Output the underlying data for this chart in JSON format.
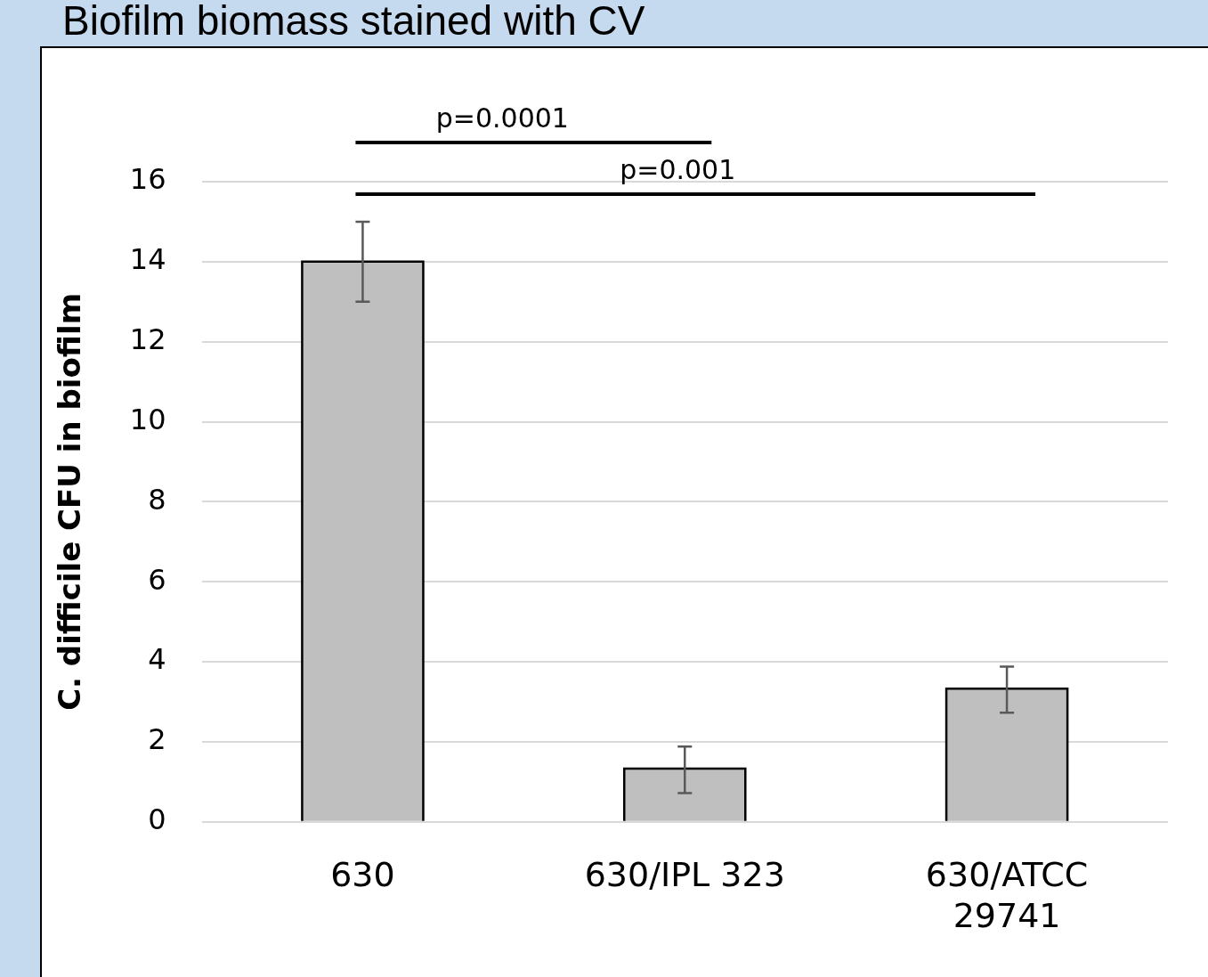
{
  "chart_data": {
    "type": "bar",
    "title": "Biofilm biomass stained with CV",
    "ylabel": "C. difficile CFU in biofilm",
    "categories": [
      "630",
      "630/IPL 323",
      "630/ATCC 29741"
    ],
    "values": [
      14,
      1.33,
      3.33
    ],
    "errors": [
      [
        13,
        15
      ],
      [
        0.72,
        1.88
      ],
      [
        2.73,
        3.88
      ]
    ],
    "color": "#bfbfbf",
    "ylim": [
      0,
      16
    ],
    "yticks": [
      0,
      2,
      4,
      6,
      8,
      10,
      12,
      14,
      16
    ],
    "grid": "y",
    "legend": false,
    "annotations": [
      "p=0.0001",
      "p=0.001"
    ]
  }
}
